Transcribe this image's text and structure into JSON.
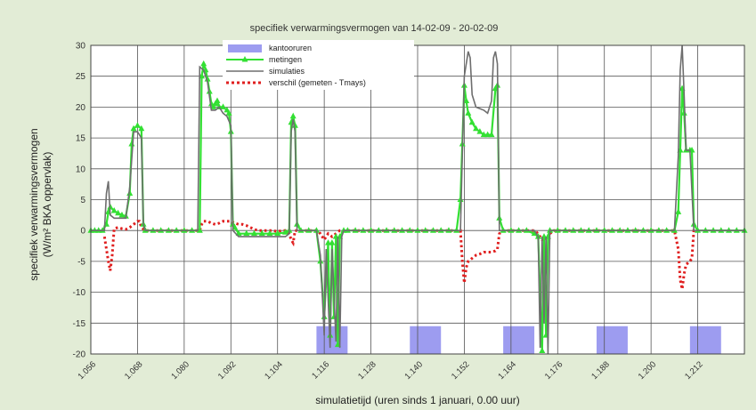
{
  "chart_data": {
    "type": "line",
    "title": "specifiek verwarmingsvermogen van 14-02-09 - 20-02-09",
    "xlabel": "simulatietijd (uren sinds 1 januari, 0.00 uur)",
    "ylabel_line1": "specifiek verwarmingsvermogen",
    "ylabel_line2": "(W/m² BKA oppervlak)",
    "xlim": [
      1056,
      1224
    ],
    "ylim": [
      -20,
      30
    ],
    "x_ticks": [
      "1.056",
      "1.068",
      "1.080",
      "1.092",
      "1.104",
      "1.116",
      "1.128",
      "1.140",
      "1.152",
      "1.164",
      "1.176",
      "1.188",
      "1.200",
      "1.212"
    ],
    "x_tick_values": [
      1056,
      1068,
      1080,
      1092,
      1104,
      1116,
      1128,
      1140,
      1152,
      1164,
      1176,
      1188,
      1200,
      1212
    ],
    "y_ticks": [
      "30",
      "25",
      "20",
      "15",
      "10",
      "5",
      "0",
      "-5",
      "-10",
      "-15",
      "-20"
    ],
    "y_tick_values": [
      30,
      25,
      20,
      15,
      10,
      5,
      0,
      -5,
      -10,
      -15,
      -20
    ],
    "grid": true,
    "legend_position": "top-center",
    "colors": {
      "kantooruren": "#9d9cf0",
      "metingen": "#33e033",
      "simulaties": "#6e6e6e",
      "verschil": "#e01f1f",
      "plot_bg": "#ffffff",
      "page_bg": "#e2ecd6"
    },
    "series": [
      {
        "name": "kantooruren",
        "kind": "bands",
        "y_range": [
          -20,
          -15.5
        ],
        "bands": [
          [
            1114,
            1122
          ],
          [
            1138,
            1146
          ],
          [
            1162,
            1170
          ],
          [
            1186,
            1194
          ],
          [
            1210,
            1218
          ]
        ]
      },
      {
        "name": "metingen",
        "kind": "line-marker",
        "points": [
          [
            1056,
            0
          ],
          [
            1057,
            0
          ],
          [
            1058,
            0
          ],
          [
            1059,
            0
          ],
          [
            1060,
            1
          ],
          [
            1060.5,
            3
          ],
          [
            1061,
            3.8
          ],
          [
            1062,
            3.2
          ],
          [
            1063,
            2.8
          ],
          [
            1064,
            2.5
          ],
          [
            1065,
            2.3
          ],
          [
            1066,
            6
          ],
          [
            1066.5,
            14
          ],
          [
            1067,
            16.5
          ],
          [
            1068,
            17
          ],
          [
            1069,
            16.5
          ],
          [
            1069.5,
            1
          ],
          [
            1070,
            0
          ],
          [
            1072,
            0
          ],
          [
            1074,
            0
          ],
          [
            1076,
            0
          ],
          [
            1078,
            0
          ],
          [
            1080,
            0
          ],
          [
            1082,
            0
          ],
          [
            1084,
            0
          ],
          [
            1084.5,
            25
          ],
          [
            1085,
            27
          ],
          [
            1085.5,
            26
          ],
          [
            1086,
            24.5
          ],
          [
            1086.5,
            22.5
          ],
          [
            1087,
            20.5
          ],
          [
            1087.5,
            20
          ],
          [
            1088,
            20.5
          ],
          [
            1088.5,
            21
          ],
          [
            1089,
            20
          ],
          [
            1090,
            20
          ],
          [
            1091,
            19.5
          ],
          [
            1091.5,
            19
          ],
          [
            1092,
            16
          ],
          [
            1092.5,
            1
          ],
          [
            1093,
            0.5
          ],
          [
            1094,
            -0.5
          ],
          [
            1096,
            -0.5
          ],
          [
            1098,
            -0.5
          ],
          [
            1100,
            -0.5
          ],
          [
            1102,
            -0.5
          ],
          [
            1104,
            -0.5
          ],
          [
            1106,
            -0.3
          ],
          [
            1107,
            0
          ],
          [
            1107.5,
            17.5
          ],
          [
            1108,
            18.5
          ],
          [
            1108.5,
            17
          ],
          [
            1109,
            1
          ],
          [
            1110,
            0
          ],
          [
            1112,
            0
          ],
          [
            1114,
            0
          ],
          [
            1115,
            -5
          ],
          [
            1116,
            -14
          ],
          [
            1117,
            -2
          ],
          [
            1117.5,
            -17
          ],
          [
            1118,
            -2
          ],
          [
            1118.5,
            -14
          ],
          [
            1119,
            -1
          ],
          [
            1119.5,
            -18.5
          ],
          [
            1120,
            -1
          ],
          [
            1121,
            0
          ],
          [
            1122,
            0
          ],
          [
            1124,
            0
          ],
          [
            1126,
            0
          ],
          [
            1128,
            0
          ],
          [
            1130,
            0
          ],
          [
            1132,
            0
          ],
          [
            1134,
            0
          ],
          [
            1136,
            0
          ],
          [
            1138,
            0
          ],
          [
            1140,
            0
          ],
          [
            1142,
            0
          ],
          [
            1144,
            0
          ],
          [
            1146,
            0
          ],
          [
            1148,
            0
          ],
          [
            1150,
            0
          ],
          [
            1151,
            5
          ],
          [
            1151.5,
            14
          ],
          [
            1152,
            23.5
          ],
          [
            1152.5,
            21
          ],
          [
            1153,
            19
          ],
          [
            1154,
            17.5
          ],
          [
            1155,
            16.5
          ],
          [
            1156,
            16
          ],
          [
            1157,
            15.5
          ],
          [
            1158,
            15.5
          ],
          [
            1159,
            15.5
          ],
          [
            1160,
            23
          ],
          [
            1160.5,
            23.5
          ],
          [
            1161,
            2
          ],
          [
            1162,
            0
          ],
          [
            1164,
            0
          ],
          [
            1166,
            0
          ],
          [
            1168,
            0
          ],
          [
            1170,
            -0.5
          ],
          [
            1171,
            -1
          ],
          [
            1172,
            -19.5
          ],
          [
            1172.5,
            -1
          ],
          [
            1173,
            -17
          ],
          [
            1173.5,
            -1
          ],
          [
            1174,
            0
          ],
          [
            1176,
            0
          ],
          [
            1178,
            0
          ],
          [
            1180,
            0
          ],
          [
            1182,
            0
          ],
          [
            1184,
            0
          ],
          [
            1186,
            0
          ],
          [
            1188,
            0
          ],
          [
            1190,
            0
          ],
          [
            1192,
            0
          ],
          [
            1194,
            0
          ],
          [
            1196,
            0
          ],
          [
            1198,
            0
          ],
          [
            1200,
            0
          ],
          [
            1202,
            0
          ],
          [
            1204,
            0
          ],
          [
            1206,
            0
          ],
          [
            1207,
            3
          ],
          [
            1207.5,
            13
          ],
          [
            1208,
            23
          ],
          [
            1208.5,
            19
          ],
          [
            1209,
            13
          ],
          [
            1210,
            13
          ],
          [
            1210.5,
            13
          ],
          [
            1211,
            1
          ],
          [
            1212,
            0
          ],
          [
            1214,
            0
          ],
          [
            1216,
            0
          ],
          [
            1218,
            0
          ],
          [
            1220,
            0
          ],
          [
            1222,
            0
          ],
          [
            1224,
            0
          ]
        ]
      },
      {
        "name": "simulaties",
        "kind": "line",
        "points": [
          [
            1056,
            0
          ],
          [
            1059.5,
            0
          ],
          [
            1060,
            6
          ],
          [
            1060.5,
            8
          ],
          [
            1061,
            2.5
          ],
          [
            1062,
            2
          ],
          [
            1063,
            2
          ],
          [
            1064,
            2
          ],
          [
            1065,
            2
          ],
          [
            1066,
            7
          ],
          [
            1067,
            16
          ],
          [
            1068,
            16
          ],
          [
            1069,
            15
          ],
          [
            1069.5,
            1
          ],
          [
            1070,
            0
          ],
          [
            1083.5,
            0
          ],
          [
            1084,
            26.5
          ],
          [
            1085,
            26
          ],
          [
            1086,
            24
          ],
          [
            1087,
            19.5
          ],
          [
            1088,
            19.5
          ],
          [
            1089,
            20
          ],
          [
            1090,
            19
          ],
          [
            1091,
            18.5
          ],
          [
            1092,
            17
          ],
          [
            1092.5,
            0
          ],
          [
            1094,
            -1
          ],
          [
            1106,
            -1
          ],
          [
            1107,
            -0.5
          ],
          [
            1107.5,
            16
          ],
          [
            1108,
            18
          ],
          [
            1108.5,
            16
          ],
          [
            1109,
            0
          ],
          [
            1114,
            0
          ],
          [
            1115,
            -4
          ],
          [
            1116,
            -17
          ],
          [
            1116.5,
            -3
          ],
          [
            1117.5,
            -19
          ],
          [
            1118,
            -3
          ],
          [
            1119,
            -18
          ],
          [
            1119.5,
            -1
          ],
          [
            1120,
            -19
          ],
          [
            1120.5,
            -1
          ],
          [
            1121,
            0
          ],
          [
            1151,
            0
          ],
          [
            1152,
            25
          ],
          [
            1153,
            29
          ],
          [
            1153.5,
            28
          ],
          [
            1154,
            22
          ],
          [
            1155,
            20
          ],
          [
            1157,
            19.5
          ],
          [
            1158,
            19
          ],
          [
            1159,
            21
          ],
          [
            1159.5,
            28
          ],
          [
            1160,
            29
          ],
          [
            1160.5,
            27
          ],
          [
            1161,
            0
          ],
          [
            1170,
            0
          ],
          [
            1171,
            -1
          ],
          [
            1171.5,
            -19
          ],
          [
            1172,
            -1
          ],
          [
            1172.5,
            -15
          ],
          [
            1173,
            -1
          ],
          [
            1173.5,
            -20
          ],
          [
            1174,
            0
          ],
          [
            1206,
            0
          ],
          [
            1207,
            12
          ],
          [
            1207.5,
            26
          ],
          [
            1208,
            30
          ],
          [
            1208.5,
            22
          ],
          [
            1209,
            13
          ],
          [
            1210,
            13
          ],
          [
            1211,
            0
          ],
          [
            1224,
            0
          ]
        ]
      },
      {
        "name": "verschil (gemeten - Tmays)",
        "kind": "dotted",
        "points": [
          [
            1059.5,
            -1
          ],
          [
            1060,
            -3
          ],
          [
            1060.5,
            -5
          ],
          [
            1061,
            -6.5
          ],
          [
            1061.5,
            -4
          ],
          [
            1062,
            0.3
          ],
          [
            1063,
            0.5
          ],
          [
            1064,
            0.3
          ],
          [
            1065,
            0.2
          ],
          [
            1066,
            0.5
          ],
          [
            1067,
            1
          ],
          [
            1068,
            1.5
          ],
          [
            1068.5,
            1.5
          ],
          [
            1069,
            0.5
          ],
          [
            1070,
            0
          ],
          [
            1084,
            0
          ],
          [
            1084.5,
            1
          ],
          [
            1085,
            1.5
          ],
          [
            1086,
            1.5
          ],
          [
            1087,
            1.2
          ],
          [
            1088,
            1
          ],
          [
            1089,
            1.2
          ],
          [
            1090,
            1.5
          ],
          [
            1091,
            1.5
          ],
          [
            1092,
            1.5
          ],
          [
            1093,
            1.2
          ],
          [
            1094,
            1
          ],
          [
            1095,
            1
          ],
          [
            1096,
            0.8
          ],
          [
            1097,
            0.5
          ],
          [
            1098,
            0.2
          ],
          [
            1099,
            0
          ],
          [
            1100,
            0
          ],
          [
            1101,
            0
          ],
          [
            1102,
            0
          ],
          [
            1103,
            0
          ],
          [
            1104,
            -0.2
          ],
          [
            1105,
            0
          ],
          [
            1106,
            0
          ],
          [
            1107,
            -0.5
          ],
          [
            1107.5,
            -1.5
          ],
          [
            1108,
            -2
          ],
          [
            1108.5,
            0
          ],
          [
            1110,
            0
          ],
          [
            1114,
            0
          ],
          [
            1115,
            -0.5
          ],
          [
            1116,
            -1.5
          ],
          [
            1117,
            -0.5
          ],
          [
            1118,
            -1
          ],
          [
            1119,
            -0.5
          ],
          [
            1120,
            0
          ],
          [
            1151,
            0
          ],
          [
            1151.5,
            -5
          ],
          [
            1152,
            -8.5
          ],
          [
            1152.5,
            -6
          ],
          [
            1153,
            -5
          ],
          [
            1154,
            -4.5
          ],
          [
            1155,
            -4
          ],
          [
            1156,
            -3.8
          ],
          [
            1157,
            -3.5
          ],
          [
            1158,
            -3.5
          ],
          [
            1159,
            -3.5
          ],
          [
            1160,
            -3.3
          ],
          [
            1160.5,
            -3
          ],
          [
            1161,
            -0.5
          ],
          [
            1162,
            0
          ],
          [
            1170,
            0
          ],
          [
            1171,
            -0.5
          ],
          [
            1172,
            -1.5
          ],
          [
            1172.5,
            -1
          ],
          [
            1173,
            -1.5
          ],
          [
            1174,
            -0.5
          ],
          [
            1175,
            0
          ],
          [
            1206,
            0
          ],
          [
            1207,
            -3
          ],
          [
            1207.5,
            -8
          ],
          [
            1208,
            -9.5
          ],
          [
            1208.5,
            -7
          ],
          [
            1209,
            -5.5
          ],
          [
            1210,
            -5
          ],
          [
            1210.5,
            -4.5
          ],
          [
            1211,
            0
          ],
          [
            1212,
            0
          ]
        ]
      }
    ]
  }
}
